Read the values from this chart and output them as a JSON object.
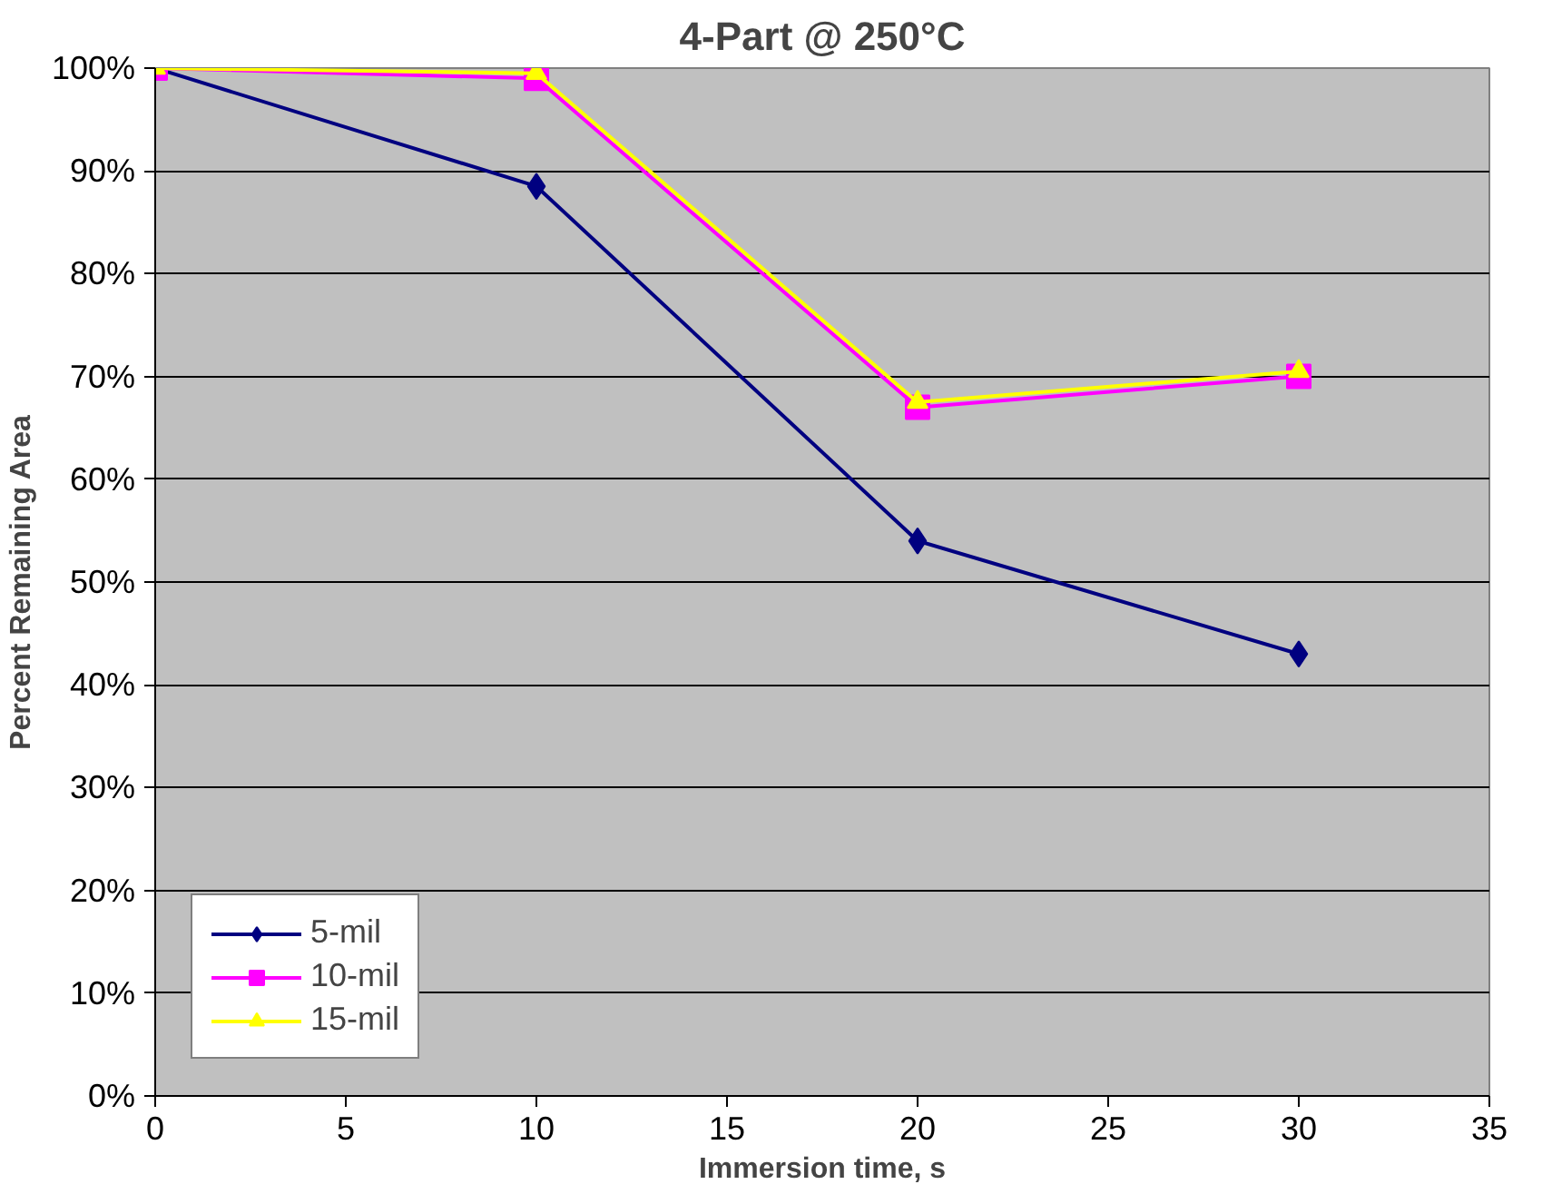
{
  "chart_data": {
    "type": "line",
    "title": "4-Part @ 250°C",
    "xlabel": "Immersion time, s",
    "ylabel": "Percent Remaining Area",
    "x": [
      0,
      10,
      20,
      30
    ],
    "series": [
      {
        "name": "5-mil",
        "color": "#000080",
        "marker": "diamond",
        "values": [
          100,
          88.5,
          54,
          43
        ]
      },
      {
        "name": "10-mil",
        "color": "#ff00ff",
        "marker": "square",
        "values": [
          100,
          99,
          67,
          70
        ]
      },
      {
        "name": "15-mil",
        "color": "#ffff00",
        "marker": "triangle",
        "values": [
          100,
          99.5,
          67.5,
          70.5
        ]
      }
    ],
    "xlim": [
      0,
      35
    ],
    "xticks": [
      0,
      5,
      10,
      15,
      20,
      25,
      30,
      35
    ],
    "ylim": [
      0,
      100
    ],
    "yticks": [
      {
        "value": 0,
        "label": "0%"
      },
      {
        "value": 10,
        "label": "10%"
      },
      {
        "value": 20,
        "label": "20%"
      },
      {
        "value": 30,
        "label": "30%"
      },
      {
        "value": 40,
        "label": "40%"
      },
      {
        "value": 50,
        "label": "50%"
      },
      {
        "value": 60,
        "label": "60%"
      },
      {
        "value": 70,
        "label": "70%"
      },
      {
        "value": 80,
        "label": "80%"
      },
      {
        "value": 90,
        "label": "90%"
      },
      {
        "value": 100,
        "label": "100%"
      }
    ],
    "grid": "y",
    "legend": "bottom left",
    "line_style": "solid"
  }
}
